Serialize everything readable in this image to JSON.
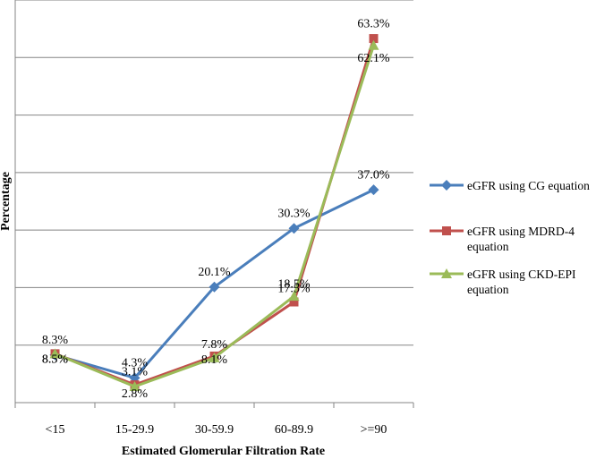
{
  "chart_data": {
    "type": "line",
    "categories": [
      "<15",
      "15-29.9",
      "30-59.9",
      "60-89.9",
      ">=90"
    ],
    "xlabel": "Estimated Glomerular Filtration Rate",
    "ylabel": "Percentage",
    "ylim": [
      0,
      70
    ],
    "grid": "horizontal",
    "legend": "right",
    "series": [
      {
        "name_lines": [
          "eGFR using CG equation"
        ],
        "values": [
          8.3,
          4.3,
          20.1,
          30.3,
          37.0
        ],
        "labels": [
          "8.3%",
          "4.3%",
          "20.1%",
          "30.3%",
          "37.0%"
        ],
        "color": "#4a7ebb",
        "marker": "diamond"
      },
      {
        "name_lines": [
          "eGFR using MDRD-4",
          "equation"
        ],
        "values": [
          8.5,
          3.1,
          8.1,
          17.5,
          63.3
        ],
        "labels": [
          "8.5%",
          "3.1%",
          "8.1%",
          "17.5%",
          "63.3%"
        ],
        "color": "#c0504d",
        "marker": "square"
      },
      {
        "name_lines": [
          "eGFR using CKD-EPI",
          "equation"
        ],
        "values": [
          8.5,
          2.8,
          7.8,
          18.5,
          62.1
        ],
        "labels": [
          "8.5%",
          "2.8%",
          "7.8%",
          "18.5%",
          "62.1%"
        ],
        "color": "#9bbb59",
        "marker": "triangle"
      }
    ]
  }
}
